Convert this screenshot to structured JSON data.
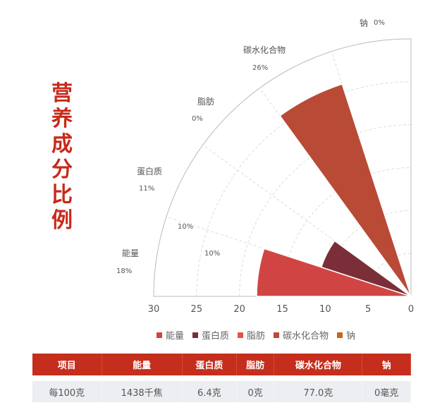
{
  "title": "营养成分比例",
  "chart_data": {
    "type": "polar-bar",
    "categories": [
      "能量",
      "蛋白质",
      "脂肪",
      "碳水化合物",
      "钠"
    ],
    "values": [
      18,
      11,
      0,
      26,
      0
    ],
    "value_labels": [
      "18%",
      "11%",
      "0%",
      "26%",
      "0%"
    ],
    "extra_labels": [
      "10%",
      "10%"
    ],
    "radial_ticks": [
      "30",
      "25",
      "20",
      "15",
      "10",
      "5",
      "0"
    ],
    "rlim": [
      0,
      30
    ],
    "colors": [
      "#d04543",
      "#7a2f38",
      "#e8504a",
      "#b94a36",
      "#c8641e"
    ],
    "legend_position": "bottom",
    "grid": true
  },
  "table": {
    "headers": [
      "项目",
      "能量",
      "蛋白质",
      "脂肪",
      "碳水化合物",
      "钠"
    ],
    "rows": [
      [
        "每100克",
        "1438千焦",
        "6.4克",
        "0克",
        "77.0克",
        "0毫克"
      ]
    ]
  }
}
